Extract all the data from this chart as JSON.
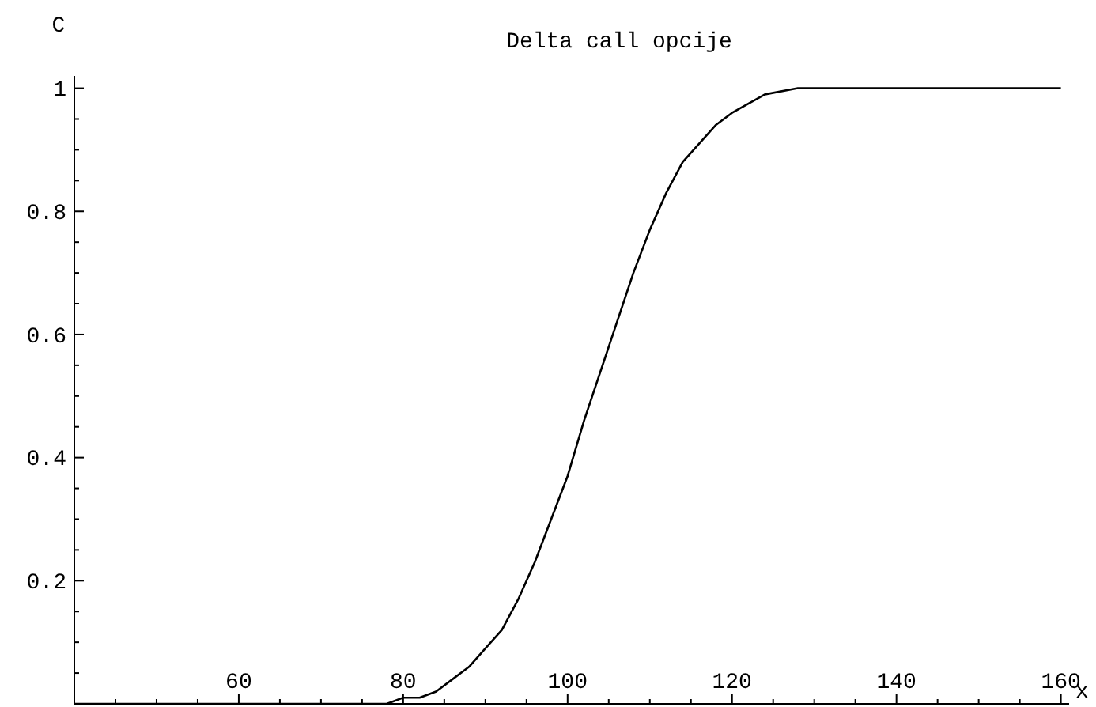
{
  "chart_data": {
    "type": "line",
    "title": "Delta call opcije",
    "xlabel": "x",
    "ylabel": "C",
    "xlim": [
      40,
      161
    ],
    "ylim": [
      0,
      1.02
    ],
    "xticks": [
      {
        "value": 45,
        "label": null
      },
      {
        "value": 50,
        "label": null
      },
      {
        "value": 55,
        "label": null
      },
      60,
      {
        "value": 65,
        "label": null
      },
      {
        "value": 70,
        "label": null
      },
      {
        "value": 75,
        "label": null
      },
      80,
      {
        "value": 85,
        "label": null
      },
      {
        "value": 90,
        "label": null
      },
      {
        "value": 95,
        "label": null
      },
      100,
      {
        "value": 105,
        "label": null
      },
      {
        "value": 110,
        "label": null
      },
      {
        "value": 115,
        "label": null
      },
      120,
      {
        "value": 125,
        "label": null
      },
      {
        "value": 130,
        "label": null
      },
      {
        "value": 135,
        "label": null
      },
      140,
      {
        "value": 145,
        "label": null
      },
      {
        "value": 150,
        "label": null
      },
      {
        "value": 155,
        "label": null
      },
      160
    ],
    "yticks": [
      {
        "value": 0.05,
        "label": null
      },
      {
        "value": 0.1,
        "label": null
      },
      {
        "value": 0.15,
        "label": null
      },
      0.2,
      {
        "value": 0.25,
        "label": null
      },
      {
        "value": 0.3,
        "label": null
      },
      {
        "value": 0.35,
        "label": null
      },
      0.4,
      {
        "value": 0.45,
        "label": null
      },
      {
        "value": 0.5,
        "label": null
      },
      {
        "value": 0.55,
        "label": null
      },
      0.6,
      {
        "value": 0.65,
        "label": null
      },
      {
        "value": 0.7,
        "label": null
      },
      {
        "value": 0.75,
        "label": null
      },
      0.8,
      {
        "value": 0.85,
        "label": null
      },
      {
        "value": 0.9,
        "label": null
      },
      {
        "value": 0.95,
        "label": null
      },
      1
    ],
    "grid": false,
    "marker": "none",
    "line_style": "solid",
    "x": [
      40,
      50,
      60,
      70,
      75,
      78,
      80,
      82,
      84,
      86,
      88,
      90,
      92,
      94,
      96,
      98,
      100,
      102,
      104,
      106,
      108,
      110,
      112,
      114,
      116,
      118,
      120,
      124,
      128,
      135,
      140,
      150,
      160
    ],
    "series": [
      {
        "color": "#000000",
        "values": [
          0,
          0,
          0,
          0,
          0,
          0,
          0.01,
          0.01,
          0.02,
          0.04,
          0.06,
          0.09,
          0.12,
          0.17,
          0.23,
          0.3,
          0.37,
          0.46,
          0.54,
          0.62,
          0.7,
          0.77,
          0.83,
          0.88,
          0.91,
          0.94,
          0.96,
          0.99,
          1,
          1,
          1,
          1,
          1
        ]
      }
    ]
  }
}
